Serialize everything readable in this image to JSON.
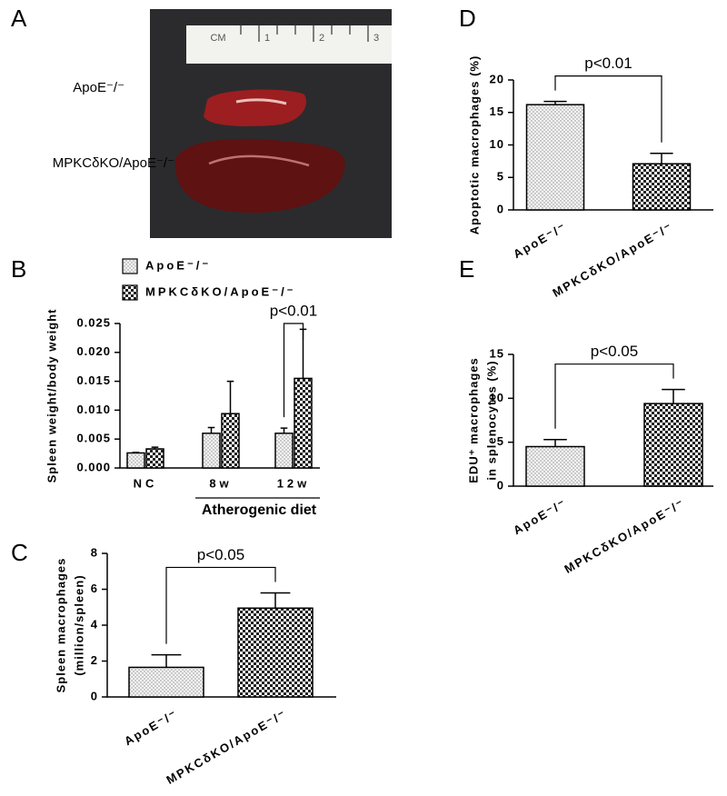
{
  "panel_a": {
    "label": "A",
    "ruler_labels": [
      "CM",
      "1",
      "2",
      "3"
    ],
    "sample_labels": [
      "ApoE⁻/⁻",
      "MPKCδKO/ApoE⁻/⁻"
    ]
  },
  "chart_data": [
    {
      "panel": "B",
      "type": "bar",
      "ylabel": [
        "Spleen weight/body weight"
      ],
      "xlabel": "Atherogenic diet",
      "categories": [
        "NC",
        "8w",
        "12w"
      ],
      "series": [
        {
          "name": "ApoE⁻/⁻",
          "color": "#e8e8e8",
          "pattern": "dots",
          "values": [
            0.0026,
            0.006,
            0.006
          ],
          "errors": [
            0.0001,
            0.001,
            0.0009
          ]
        },
        {
          "name": "MPKCδKO/ApoE⁻/⁻",
          "color": "#222222",
          "pattern": "checker",
          "values": [
            0.0033,
            0.0094,
            0.0155
          ],
          "errors": [
            0.0003,
            0.0056,
            0.0085
          ]
        }
      ],
      "ylim": [
        0,
        0.025
      ],
      "yticks": [
        {
          "value": 0,
          "label": "0.000"
        },
        0.005,
        {
          "value": 0.01,
          "label": "0.010"
        },
        0.015,
        {
          "value": 0.02,
          "label": "0.020"
        },
        0.025
      ],
      "annotation": "p<0.01"
    },
    {
      "panel": "C",
      "type": "bar",
      "ylabel": [
        "Spleen macrophages",
        "(million/spleen)"
      ],
      "categories": [
        "ApoE⁻/⁻",
        "MPKCδKO/ApoE⁻/⁻"
      ],
      "values": [
        1.65,
        4.95
      ],
      "errors": [
        0.7,
        0.85
      ],
      "patterns": [
        "dots",
        "checker"
      ],
      "ylim": [
        0,
        8
      ],
      "yticks": [
        0,
        2,
        4,
        6,
        8
      ],
      "annotation": "p<0.05"
    },
    {
      "panel": "D",
      "type": "bar",
      "ylabel": [
        "Apoptotic macrophages (%)"
      ],
      "categories": [
        "ApoE⁻/⁻",
        "MPKCδKO/ApoE⁻/⁻"
      ],
      "values": [
        16.2,
        7.1
      ],
      "errors": [
        0.5,
        1.6
      ],
      "patterns": [
        "dots",
        "checker"
      ],
      "ylim": [
        0,
        20
      ],
      "yticks": [
        0,
        5,
        10,
        15,
        20
      ],
      "annotation": "p<0.01"
    },
    {
      "panel": "E",
      "type": "bar",
      "ylabel": [
        "EDU⁺ macrophages",
        "in splenocytes (%)"
      ],
      "categories": [
        "ApoE⁻/⁻",
        "MPKCδKO/ApoE⁻/⁻"
      ],
      "values": [
        4.5,
        9.4
      ],
      "errors": [
        0.8,
        1.6
      ],
      "patterns": [
        "dots",
        "checker"
      ],
      "ylim": [
        0,
        15
      ],
      "yticks": [
        0,
        5,
        10,
        15
      ],
      "annotation": "p<0.05"
    }
  ]
}
